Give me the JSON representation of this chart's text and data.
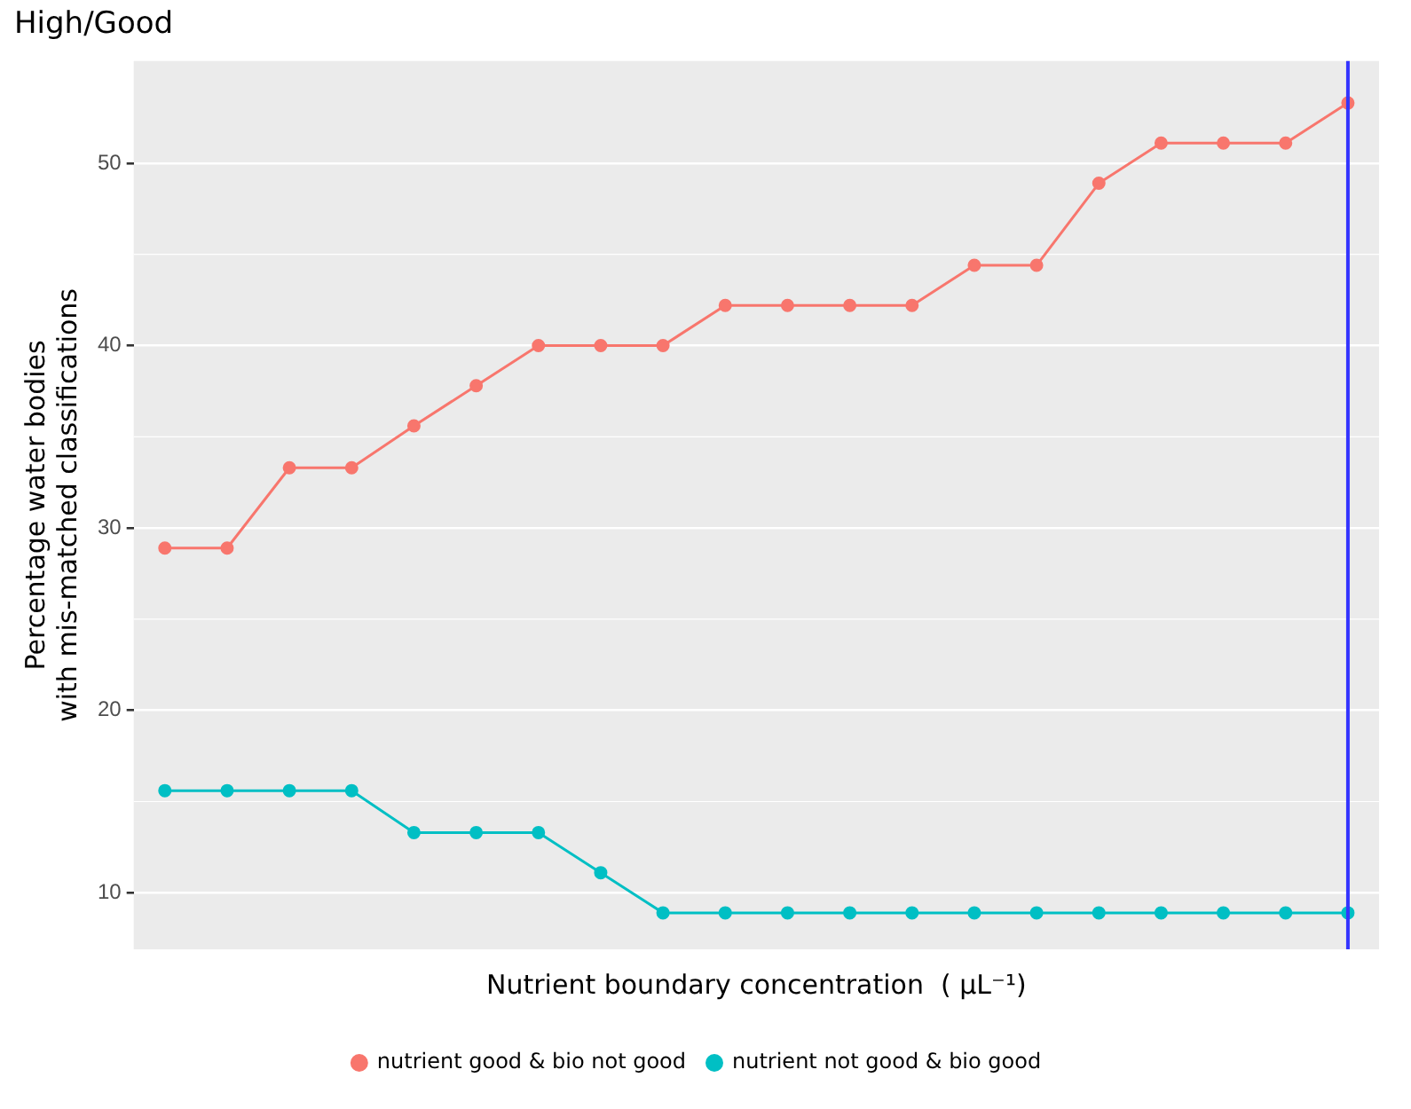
{
  "chart_data": {
    "type": "line",
    "title": "High/Good",
    "xlabel": "Nutrient boundary concentration  ( µL⁻¹)",
    "ylabel": "Percentage water bodies\nwith mis-matched classifications",
    "categories": [
      null,
      null,
      null,
      null,
      null,
      null,
      null,
      null,
      null,
      null,
      null,
      null,
      null,
      null,
      null,
      null,
      null,
      null,
      null,
      null
    ],
    "series": [
      {
        "name": "nutrient good & bio not good",
        "color": "#f8766d",
        "values": [
          28.9,
          28.9,
          33.3,
          33.3,
          35.6,
          37.8,
          40,
          40,
          40,
          42.2,
          42.2,
          42.2,
          42.2,
          44.4,
          44.4,
          48.9,
          51.1,
          51.1,
          51.1,
          53.3
        ]
      },
      {
        "name": "nutrient not good & bio good",
        "color": "#00bfc4",
        "values": [
          15.6,
          15.6,
          15.6,
          15.6,
          13.3,
          13.3,
          13.3,
          11.1,
          8.9,
          8.9,
          8.9,
          8.9,
          8.9,
          8.9,
          8.9,
          8.9,
          8.9,
          8.9,
          8.9,
          8.9
        ]
      }
    ],
    "ylim": [
      6.9,
      55.6
    ],
    "yticks": [
      10,
      20,
      30,
      40,
      50
    ],
    "grid": "y",
    "legend": "bottom",
    "marker": "circle",
    "line_style": "solid",
    "tick_labels": "y"
  }
}
